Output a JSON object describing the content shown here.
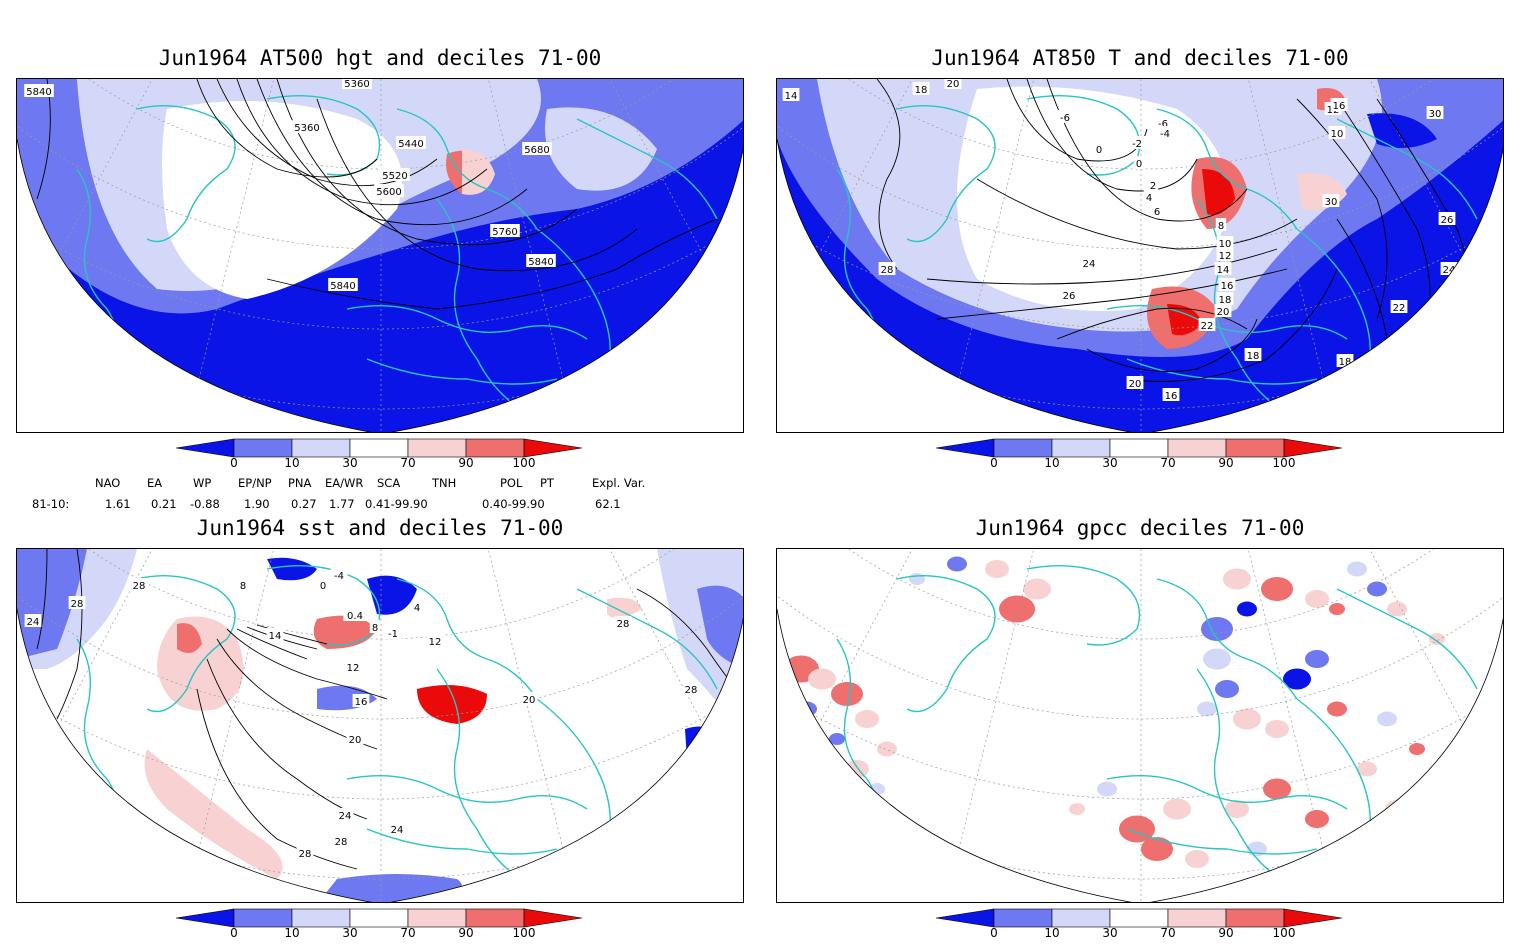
{
  "panels": [
    {
      "title": "Jun1964 AT500 hgt and deciles 71-00",
      "contour_labels": [
        "5840",
        "5360",
        "5440",
        "5520",
        "5600",
        "5680",
        "5760",
        "5840",
        "5840",
        "5360"
      ]
    },
    {
      "title": "Jun1964 AT850 T and deciles 71-00",
      "contour_labels": [
        "14",
        "18",
        "20",
        "-6",
        "-6",
        "-4",
        "-2",
        "0",
        "0",
        "2",
        "4",
        "6",
        "8",
        "10",
        "12",
        "14",
        "16",
        "18",
        "20",
        "22",
        "24",
        "26",
        "28",
        "30",
        "10",
        "12",
        "16",
        "30",
        "26",
        "24",
        "22",
        "18",
        "16",
        "20",
        "18"
      ]
    },
    {
      "title": "Jun1964 sst and deciles 71-00",
      "contour_labels": [
        "24",
        "28",
        "28",
        "8",
        "0",
        "0.4",
        "-1",
        "4",
        "8",
        "12",
        "12",
        "16",
        "20",
        "24",
        "28",
        "28",
        "24",
        "20",
        "28",
        "28",
        "14",
        "-4"
      ]
    },
    {
      "title": "Jun1964 gpcc deciles 71-00",
      "contour_labels": []
    }
  ],
  "colorbar": {
    "ticks": [
      "0",
      "10",
      "30",
      "70",
      "90",
      "100"
    ],
    "colors": [
      "#0a14e6",
      "#6e78f0",
      "#d4d8f8",
      "#ffffff",
      "#f8d2d2",
      "#ef6e6e",
      "#eb0a0a"
    ]
  },
  "indices": {
    "headers": [
      "NAO",
      "EA",
      "WP",
      "EP/NP",
      "PNA",
      "EA/WR",
      "SCA",
      "TNH",
      "POL",
      "PT",
      "Expl. Var."
    ],
    "row_label": "81-10:",
    "values": [
      "1.61",
      "0.21",
      "-0.88",
      "1.90",
      "0.27",
      "1.77",
      "0.41-99.90",
      "0.40-99.90",
      "62.1"
    ]
  }
}
